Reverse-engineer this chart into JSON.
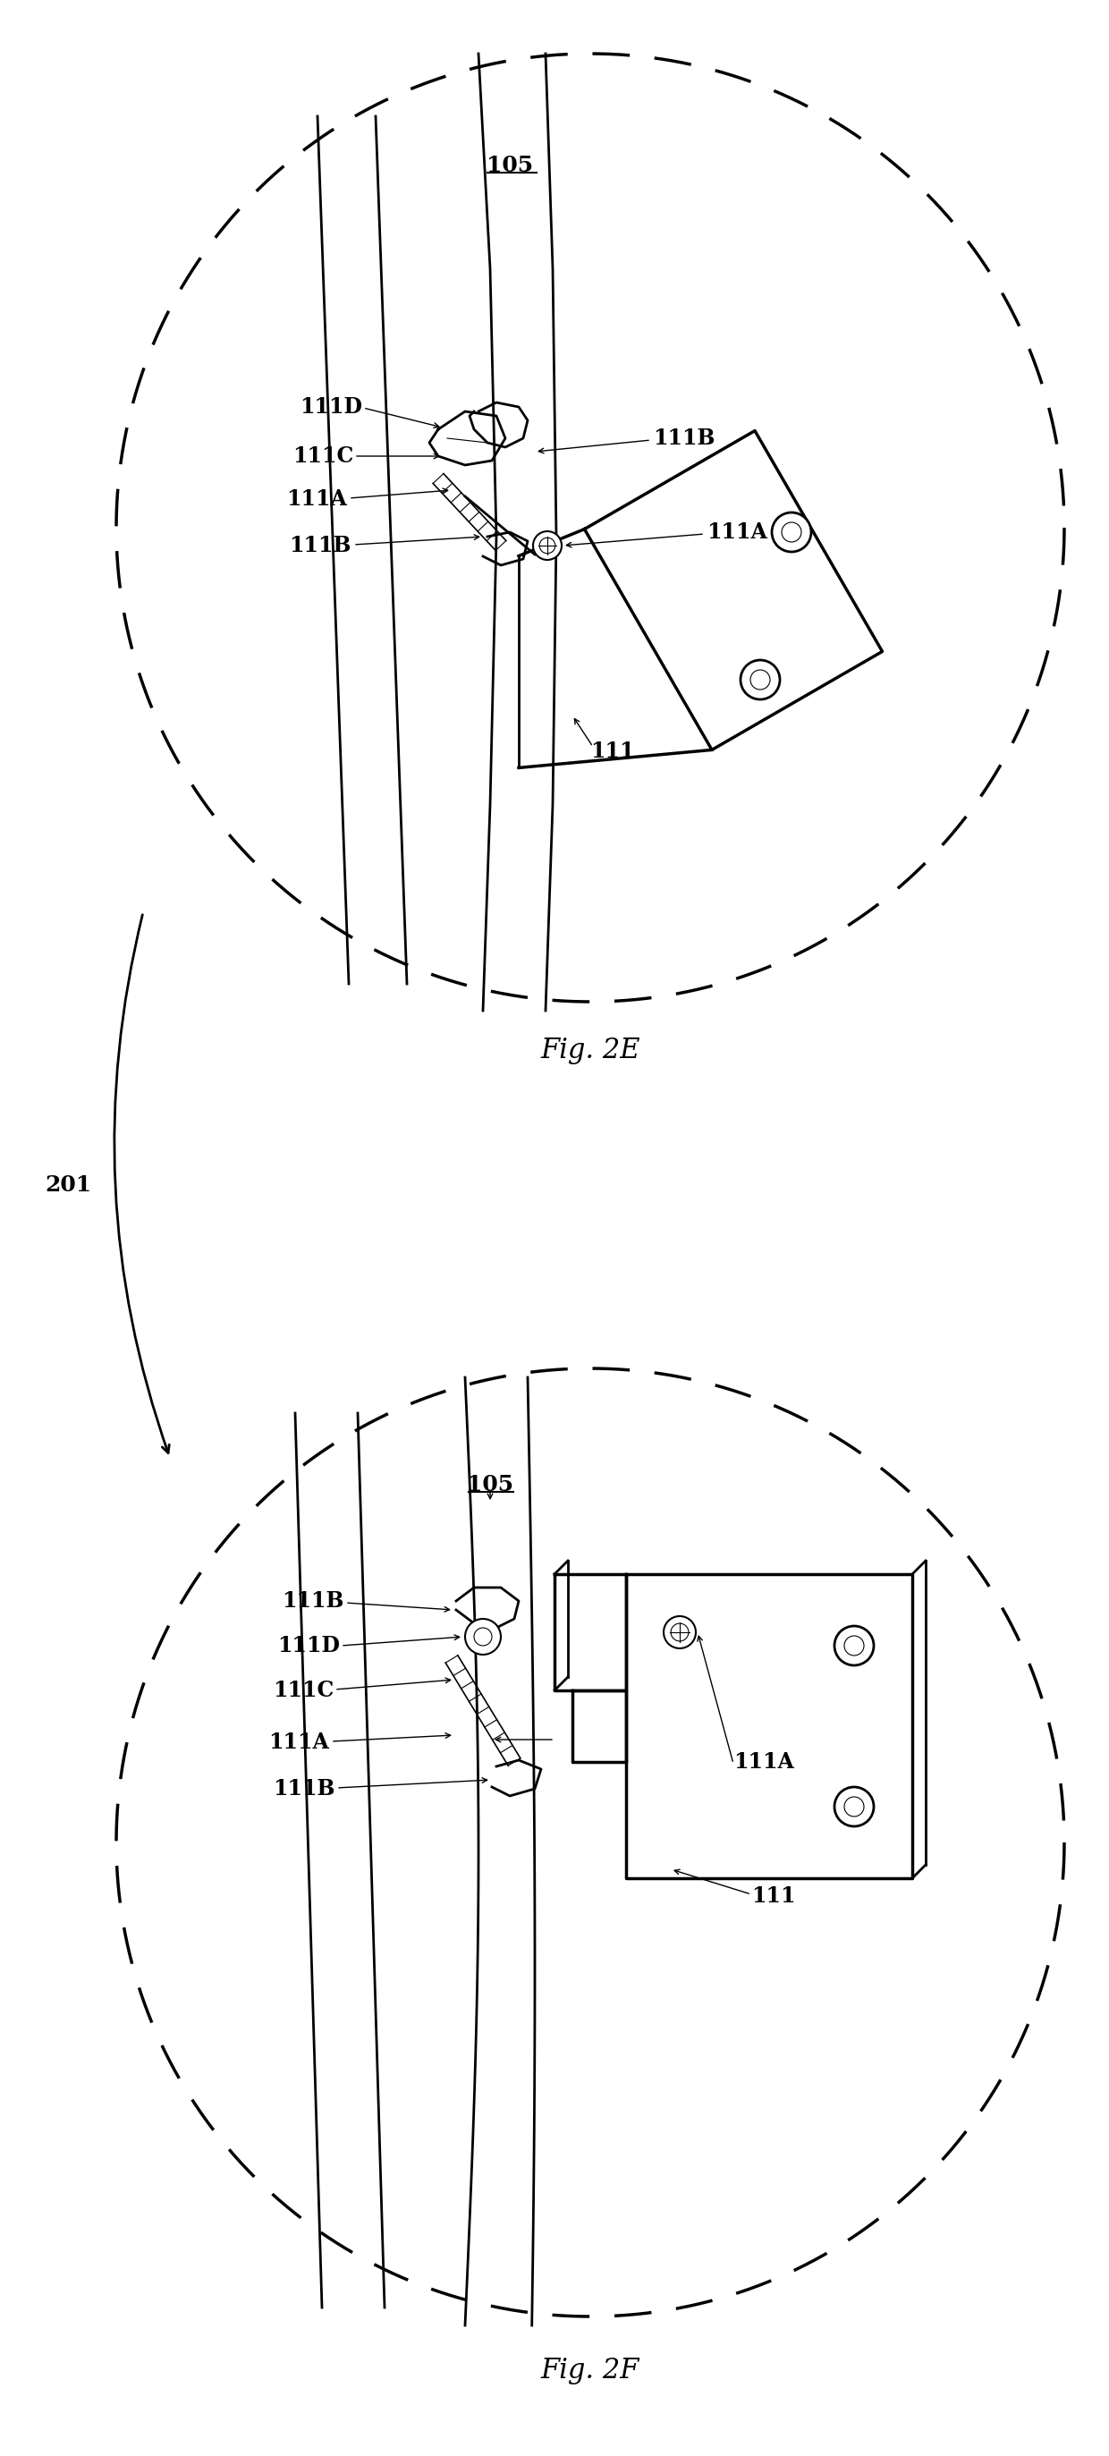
{
  "fig_width": 12.4,
  "fig_height": 27.46,
  "background_color": "#ffffff",
  "line_color": "#000000",
  "fig2E_label": "Fig. 2E",
  "fig2F_label": "Fig. 2F",
  "label_201": "201"
}
